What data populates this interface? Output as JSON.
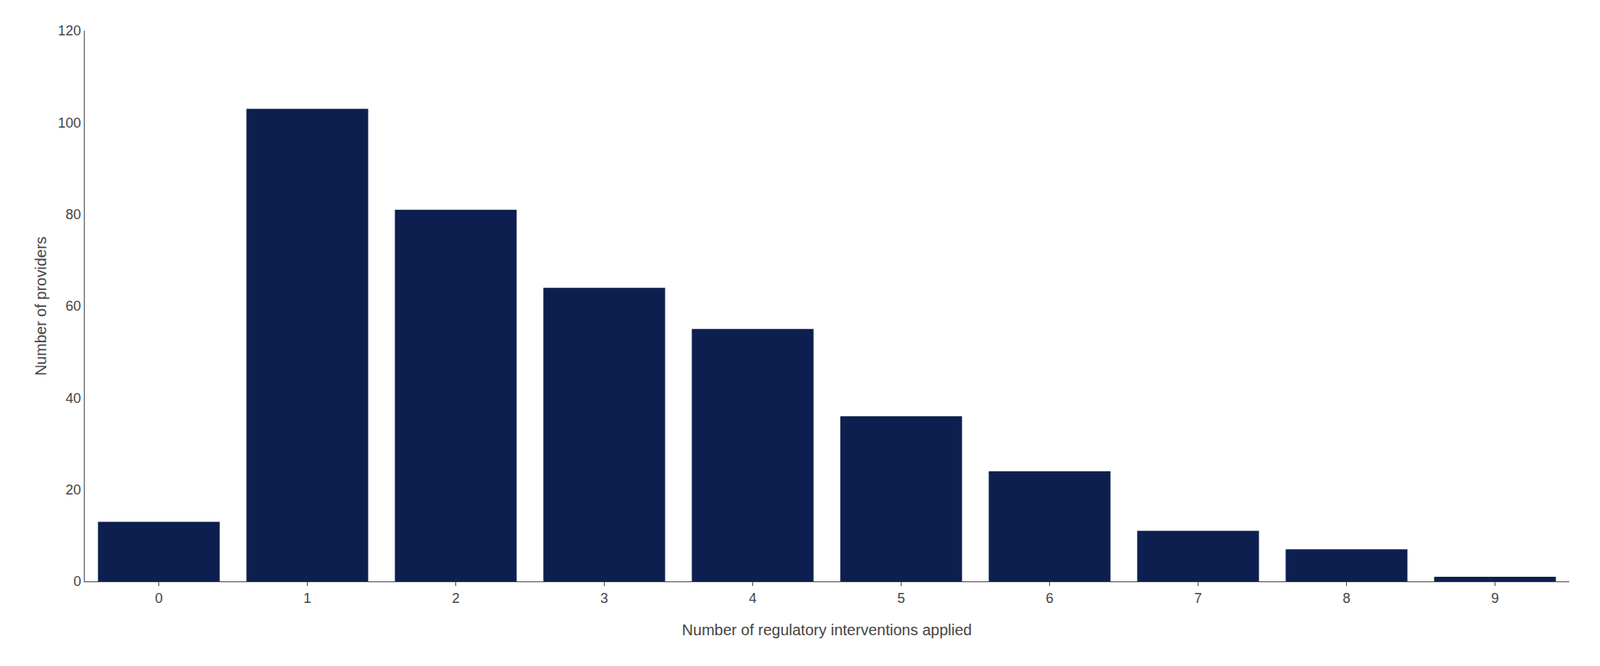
{
  "chart_data": {
    "type": "bar",
    "categories": [
      0,
      1,
      2,
      3,
      4,
      5,
      6,
      7,
      8,
      9
    ],
    "values": [
      13,
      103,
      81,
      64,
      55,
      36,
      24,
      11,
      7,
      1
    ],
    "color": "#0d1f4e",
    "xlabel": "Number of regulatory interventions applied",
    "ylabel": "Number of providers",
    "ylim": [
      0,
      120
    ],
    "yticks": [
      0,
      20,
      40,
      60,
      80,
      100,
      120
    ],
    "grid": false
  }
}
